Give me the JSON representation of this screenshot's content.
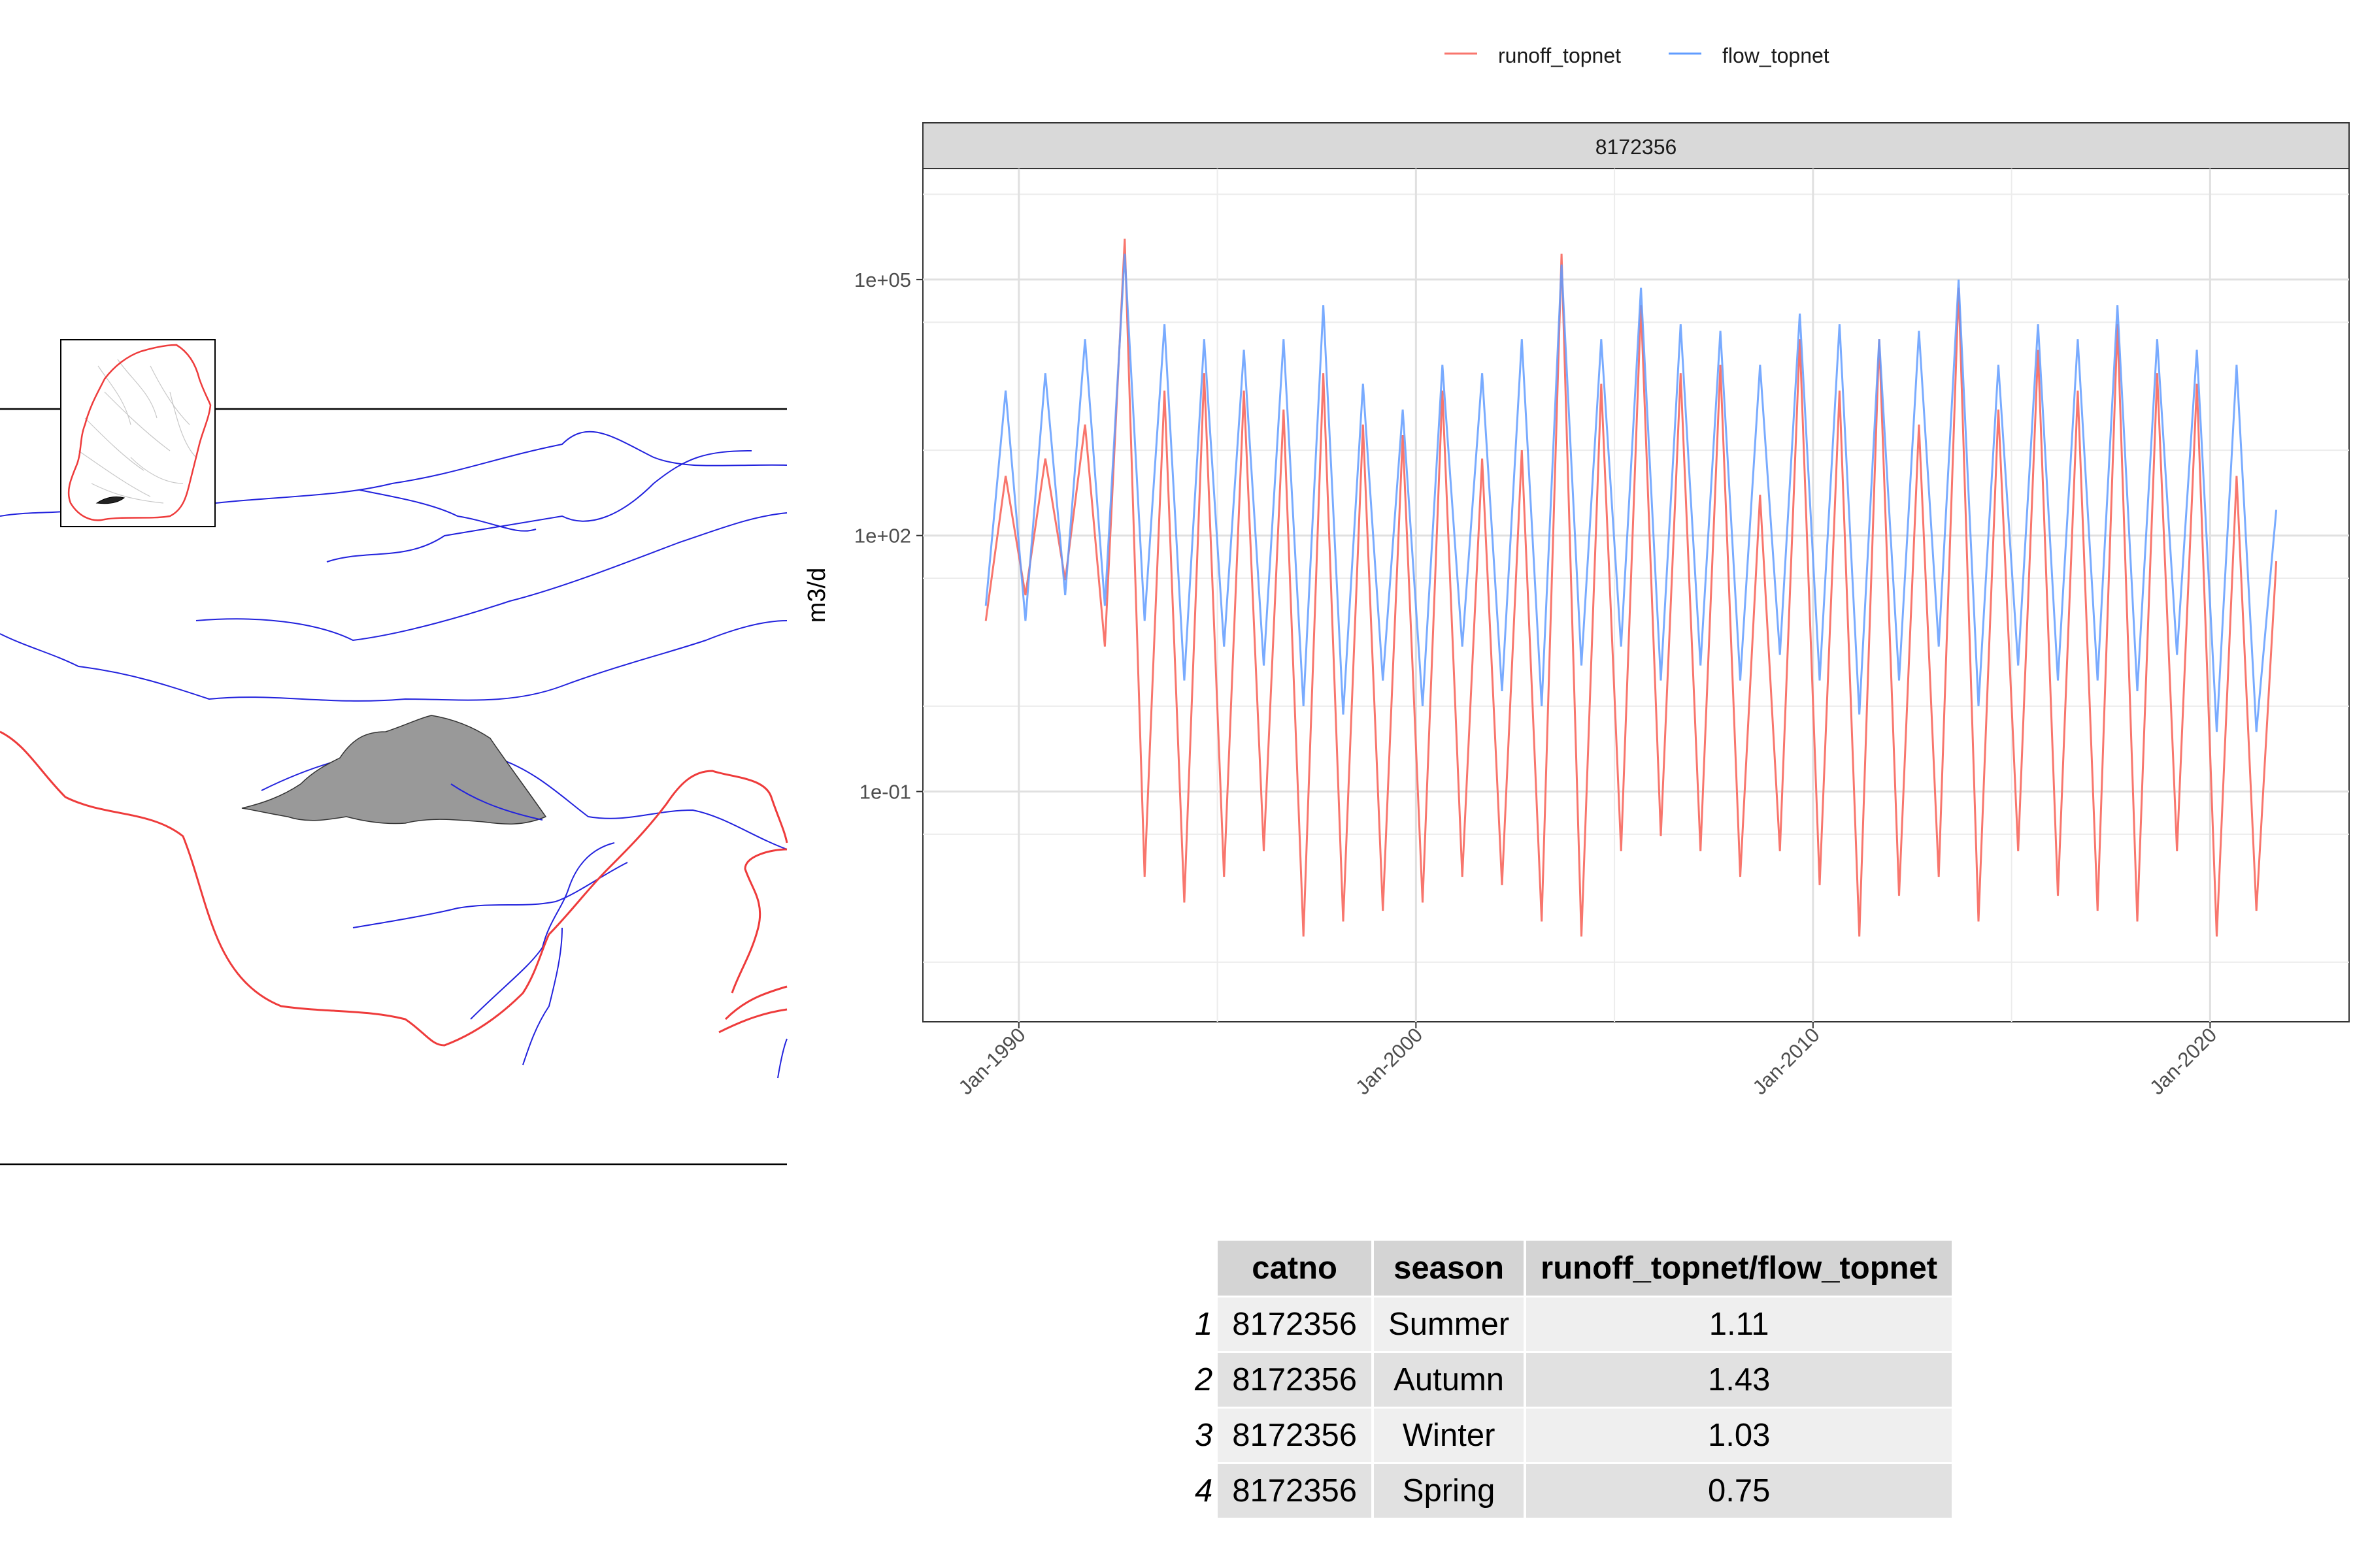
{
  "map": {
    "inset_label": "",
    "colors": {
      "coast": "#ee3b3b",
      "river": "#2222dd",
      "catchment": "#999999",
      "frame": "#000000"
    }
  },
  "chart_data": {
    "type": "line",
    "panel_title": "8172356",
    "ylabel": "m3/d",
    "xlabel": "",
    "y_scale": "log10",
    "ylim": [
      0.0002,
      2000000
    ],
    "y_ticks": [
      "1e-01",
      "1e+02",
      "1e+05"
    ],
    "y_tick_values": [
      0.1,
      100,
      100000
    ],
    "x_ticks": [
      "Jan-1990",
      "Jan-2000",
      "Jan-2010",
      "Jan-2020"
    ],
    "x_tick_values": [
      "1990-01-01",
      "2000-01-01",
      "2010-01-01",
      "2020-01-01"
    ],
    "xlim": [
      "1987-08-01",
      "2023-07-01"
    ],
    "legend_position": "top",
    "grid": true,
    "series": [
      {
        "name": "runoff_topnet",
        "color": "#f8766d",
        "x": [
          "1989-03",
          "1989-09",
          "1990-03",
          "1990-09",
          "1991-03",
          "1991-09",
          "1992-03",
          "1992-09",
          "1993-03",
          "1993-09",
          "1994-03",
          "1994-09",
          "1995-03",
          "1995-09",
          "1996-03",
          "1996-09",
          "1997-03",
          "1997-09",
          "1998-03",
          "1998-09",
          "1999-03",
          "1999-09",
          "2000-03",
          "2000-09",
          "2001-03",
          "2001-09",
          "2002-03",
          "2002-09",
          "2003-03",
          "2003-09",
          "2004-03",
          "2004-09",
          "2005-03",
          "2005-09",
          "2006-03",
          "2006-09",
          "2007-03",
          "2007-09",
          "2008-03",
          "2008-09",
          "2009-03",
          "2009-09",
          "2010-03",
          "2010-09",
          "2011-03",
          "2011-09",
          "2012-03",
          "2012-09",
          "2013-03",
          "2013-09",
          "2014-03",
          "2014-09",
          "2015-03",
          "2015-09",
          "2016-03",
          "2016-09",
          "2017-03",
          "2017-09",
          "2018-03",
          "2018-09",
          "2019-03",
          "2019-09",
          "2020-03",
          "2020-09",
          "2021-03",
          "2021-09"
        ],
        "y": [
          10,
          500,
          20,
          800,
          30,
          2000,
          5,
          300000,
          0.01,
          5000,
          0.005,
          8000,
          0.01,
          5000,
          0.02,
          3000,
          0.002,
          8000,
          0.003,
          2000,
          0.004,
          1500,
          0.005,
          5000,
          0.01,
          800,
          0.008,
          1000,
          0.003,
          200000,
          0.002,
          6000,
          0.02,
          50000,
          0.03,
          8000,
          0.02,
          10000,
          0.01,
          300,
          0.02,
          20000,
          0.008,
          5000,
          0.002,
          20000,
          0.006,
          2000,
          0.01,
          80000,
          0.003,
          3000,
          0.02,
          15000,
          0.006,
          5000,
          0.004,
          30000,
          0.003,
          8000,
          0.02,
          6000,
          0.002,
          500,
          0.004,
          50
        ]
      },
      {
        "name": "flow_topnet",
        "color": "#619cff",
        "x": [
          "1989-03",
          "1989-09",
          "1990-03",
          "1990-09",
          "1991-03",
          "1991-09",
          "1992-03",
          "1992-09",
          "1993-03",
          "1993-09",
          "1994-03",
          "1994-09",
          "1995-03",
          "1995-09",
          "1996-03",
          "1996-09",
          "1997-03",
          "1997-09",
          "1998-03",
          "1998-09",
          "1999-03",
          "1999-09",
          "2000-03",
          "2000-09",
          "2001-03",
          "2001-09",
          "2002-03",
          "2002-09",
          "2003-03",
          "2003-09",
          "2004-03",
          "2004-09",
          "2005-03",
          "2005-09",
          "2006-03",
          "2006-09",
          "2007-03",
          "2007-09",
          "2008-03",
          "2008-09",
          "2009-03",
          "2009-09",
          "2010-03",
          "2010-09",
          "2011-03",
          "2011-09",
          "2012-03",
          "2012-09",
          "2013-03",
          "2013-09",
          "2014-03",
          "2014-09",
          "2015-03",
          "2015-09",
          "2016-03",
          "2016-09",
          "2017-03",
          "2017-09",
          "2018-03",
          "2018-09",
          "2019-03",
          "2019-09",
          "2020-03",
          "2020-09",
          "2021-03",
          "2021-09"
        ],
        "y": [
          15,
          5000,
          10,
          8000,
          20,
          20000,
          15,
          200000,
          10,
          30000,
          2,
          20000,
          5,
          15000,
          3,
          20000,
          1,
          50000,
          0.8,
          6000,
          2,
          3000,
          1,
          10000,
          5,
          8000,
          1.5,
          20000,
          1,
          150000,
          3,
          20000,
          5,
          80000,
          2,
          30000,
          3,
          25000,
          2,
          10000,
          4,
          40000,
          2,
          30000,
          0.8,
          20000,
          2,
          25000,
          5,
          100000,
          1,
          10000,
          3,
          30000,
          2,
          20000,
          2,
          50000,
          1.5,
          20000,
          4,
          15000,
          0.5,
          10000,
          0.5,
          200
        ]
      }
    ]
  },
  "table": {
    "headers": [
      "catno",
      "season",
      "runoff_topnet/flow_topnet"
    ],
    "rows": [
      {
        "num": "1",
        "catno": "8172356",
        "season": "Summer",
        "ratio": "1.11"
      },
      {
        "num": "2",
        "catno": "8172356",
        "season": "Autumn",
        "ratio": "1.43"
      },
      {
        "num": "3",
        "catno": "8172356",
        "season": "Winter",
        "ratio": "1.03"
      },
      {
        "num": "4",
        "catno": "8172356",
        "season": "Spring",
        "ratio": "0.75"
      }
    ]
  }
}
